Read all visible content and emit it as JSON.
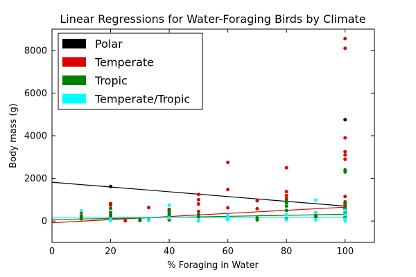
{
  "chart_data": {
    "type": "scatter",
    "title": "Linear Regressions for Water-Foraging Birds by Climate",
    "xlabel": "% Foraging in Water",
    "ylabel": "Body mass (g)",
    "xlim": [
      0,
      110
    ],
    "ylim": [
      -1000,
      9000
    ],
    "xticks": [
      0,
      20,
      40,
      60,
      80,
      100
    ],
    "yticks": [
      0,
      2000,
      4000,
      6000,
      8000
    ],
    "grid": false,
    "legend_position": "top-left",
    "series": [
      {
        "name": "Polar",
        "color": "#000000",
        "points": [
          [
            20,
            1620
          ],
          [
            100,
            4750
          ]
        ],
        "regression": [
          [
            0,
            1820
          ],
          [
            100,
            700
          ]
        ]
      },
      {
        "name": "Temperate",
        "color": "#e00000",
        "points": [
          [
            10,
            400
          ],
          [
            10,
            120
          ],
          [
            20,
            820
          ],
          [
            20,
            750
          ],
          [
            20,
            400
          ],
          [
            20,
            300
          ],
          [
            25,
            10
          ],
          [
            33,
            630
          ],
          [
            40,
            550
          ],
          [
            40,
            450
          ],
          [
            40,
            300
          ],
          [
            50,
            1250
          ],
          [
            50,
            1000
          ],
          [
            50,
            800
          ],
          [
            50,
            450
          ],
          [
            50,
            200
          ],
          [
            60,
            2750
          ],
          [
            60,
            1480
          ],
          [
            60,
            620
          ],
          [
            70,
            950
          ],
          [
            70,
            580
          ],
          [
            80,
            2500
          ],
          [
            80,
            1380
          ],
          [
            80,
            1200
          ],
          [
            80,
            1050
          ],
          [
            90,
            250
          ],
          [
            100,
            8550
          ],
          [
            100,
            8100
          ],
          [
            100,
            3900
          ],
          [
            100,
            3250
          ],
          [
            100,
            3100
          ],
          [
            100,
            2900
          ],
          [
            100,
            1150
          ],
          [
            100,
            900
          ],
          [
            100,
            800
          ],
          [
            100,
            700
          ],
          [
            100,
            600
          ],
          [
            100,
            550
          ]
        ],
        "regression": [
          [
            0,
            -80
          ],
          [
            100,
            650
          ]
        ]
      },
      {
        "name": "Tropic",
        "color": "#008000",
        "points": [
          [
            10,
            250
          ],
          [
            10,
            100
          ],
          [
            20,
            600
          ],
          [
            20,
            400
          ],
          [
            20,
            200
          ],
          [
            20,
            100
          ],
          [
            30,
            80
          ],
          [
            30,
            20
          ],
          [
            33,
            50
          ],
          [
            40,
            500
          ],
          [
            40,
            400
          ],
          [
            40,
            250
          ],
          [
            40,
            100
          ],
          [
            40,
            50
          ],
          [
            50,
            300
          ],
          [
            50,
            200
          ],
          [
            60,
            200
          ],
          [
            60,
            100
          ],
          [
            70,
            150
          ],
          [
            70,
            50
          ],
          [
            80,
            950
          ],
          [
            80,
            850
          ],
          [
            80,
            700
          ],
          [
            80,
            500
          ],
          [
            80,
            300
          ],
          [
            80,
            100
          ],
          [
            90,
            400
          ],
          [
            90,
            200
          ],
          [
            100,
            2400
          ],
          [
            100,
            2300
          ],
          [
            100,
            800
          ],
          [
            100,
            600
          ],
          [
            100,
            400
          ],
          [
            100,
            200
          ],
          [
            100,
            100
          ]
        ],
        "regression": [
          [
            0,
            70
          ],
          [
            100,
            320
          ]
        ]
      },
      {
        "name": "Temperate/Tropic",
        "color": "#00ffff",
        "points": [
          [
            10,
            480
          ],
          [
            20,
            100
          ],
          [
            20,
            20
          ],
          [
            33,
            20
          ],
          [
            40,
            750
          ],
          [
            40,
            150
          ],
          [
            50,
            50
          ],
          [
            50,
            0
          ],
          [
            60,
            250
          ],
          [
            60,
            150
          ],
          [
            60,
            50
          ],
          [
            80,
            300
          ],
          [
            80,
            50
          ],
          [
            90,
            980
          ],
          [
            90,
            400
          ],
          [
            90,
            50
          ],
          [
            100,
            500
          ],
          [
            100,
            300
          ],
          [
            100,
            100
          ],
          [
            100,
            0
          ]
        ],
        "regression": [
          [
            0,
            180
          ],
          [
            100,
            160
          ]
        ]
      }
    ]
  }
}
